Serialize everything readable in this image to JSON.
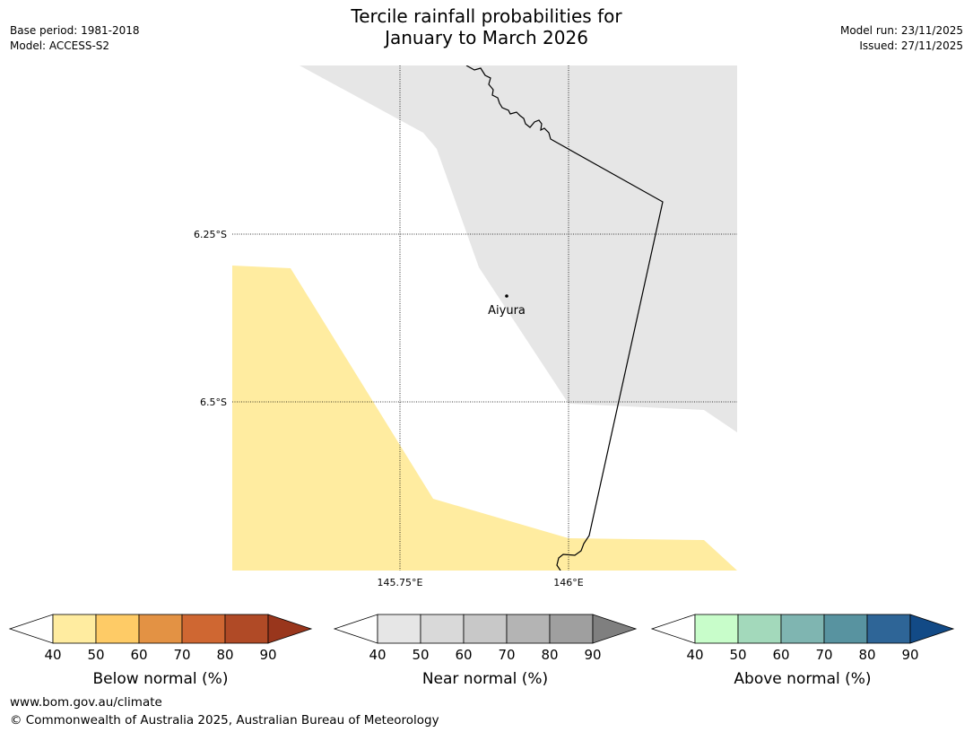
{
  "title": {
    "line1": "Tercile rainfall probabilities for",
    "line2": "January to March 2026"
  },
  "meta_left": {
    "base_period": "Base period: 1981-2018",
    "model": "Model: ACCESS-S2"
  },
  "meta_right": {
    "model_run": "Model run: 23/11/2025",
    "issued": "Issued: 27/11/2025"
  },
  "map": {
    "lat_labels": [
      "6.25°S",
      "6.5°S"
    ],
    "lon_labels": [
      "145.75°E",
      "146°E"
    ],
    "place_label": "Aiyura",
    "colors": {
      "near_normal_region": "#e6e6e6",
      "below_normal_region": "#ffeca0",
      "border_line": "#000000"
    }
  },
  "legends": [
    {
      "label": "Below normal (%)",
      "ticks": [
        "40",
        "50",
        "60",
        "70",
        "80",
        "90"
      ],
      "colors": [
        "#ffffff",
        "#ffeca0",
        "#fecb66",
        "#e39244",
        "#cf6732",
        "#b04a26",
        "#99361c"
      ]
    },
    {
      "label": "Near normal (%)",
      "ticks": [
        "40",
        "50",
        "60",
        "70",
        "80",
        "90"
      ],
      "colors": [
        "#ffffff",
        "#e6e6e6",
        "#d9d9d9",
        "#c8c8c8",
        "#b4b4b4",
        "#9f9f9f",
        "#7f7f7f"
      ]
    },
    {
      "label": "Above normal (%)",
      "ticks": [
        "40",
        "50",
        "60",
        "70",
        "80",
        "90"
      ],
      "colors": [
        "#ffffff",
        "#c8fdca",
        "#a3d9bb",
        "#7fb5b1",
        "#5893a0",
        "#2e6597",
        "#124a86"
      ]
    }
  ],
  "footer": {
    "url": "www.bom.gov.au/climate",
    "copyright": "© Commonwealth of Australia 2025, Australian Bureau of Meteorology"
  }
}
